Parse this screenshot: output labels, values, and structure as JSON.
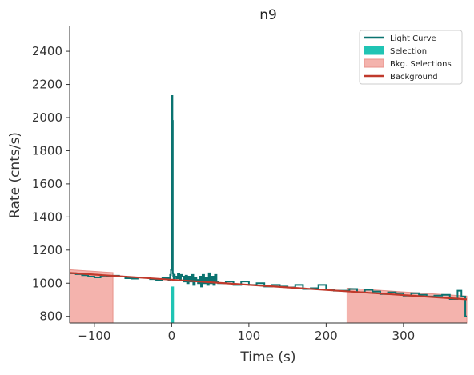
{
  "chart_data": {
    "type": "line",
    "title": "n9",
    "xlabel": "Time (s)",
    "ylabel": "Rate (cnts/s)",
    "xlim": [
      -132,
      382
    ],
    "ylim": [
      760,
      2550
    ],
    "x_ticks": [
      -100,
      0,
      100,
      200,
      300
    ],
    "x_tick_labels": [
      "−100",
      "0",
      "100",
      "200",
      "300"
    ],
    "y_ticks": [
      800,
      1000,
      1200,
      1400,
      1600,
      1800,
      2000,
      2200,
      2400
    ],
    "y_tick_labels": [
      "800",
      "1000",
      "1200",
      "1400",
      "1600",
      "1800",
      "2000",
      "2200",
      "2400"
    ],
    "grid": false,
    "legend_position": "top-right",
    "colors": {
      "light_curve": "#0a7370",
      "selection": "#20c4b4",
      "bkg_selection": "#f4b3ad",
      "bkg_selection_edge": "#e8928a",
      "background": "#c0392b"
    },
    "legend": [
      {
        "label": "Light Curve",
        "kind": "line",
        "color_key": "light_curve"
      },
      {
        "label": "Selection",
        "kind": "patch",
        "color_key": "selection"
      },
      {
        "label": "Bkg. Selections",
        "kind": "patch",
        "color_key": "bkg_selection"
      },
      {
        "label": "Background",
        "kind": "line",
        "color_key": "background"
      }
    ],
    "series": [
      {
        "name": "Light Curve",
        "kind": "step",
        "x": [
          -132,
          -124,
          -116,
          -108,
          -100,
          -92,
          -84,
          -76,
          -68,
          -60,
          -52,
          -44,
          -36,
          -28,
          -20,
          -12,
          -4,
          -2,
          -1,
          0,
          0.5,
          1,
          1.5,
          2,
          2.5,
          3,
          4,
          6,
          8,
          10,
          12,
          14,
          16,
          18,
          20,
          22,
          24,
          26,
          28,
          30,
          32,
          34,
          36,
          38,
          40,
          42,
          44,
          46,
          48,
          50,
          52,
          54,
          56,
          58,
          60,
          70,
          80,
          90,
          100,
          110,
          120,
          130,
          140,
          150,
          160,
          170,
          180,
          190,
          200,
          210,
          220,
          230,
          240,
          250,
          260,
          270,
          280,
          290,
          300,
          310,
          320,
          330,
          340,
          350,
          360,
          370,
          375,
          380
        ],
        "y": [
          1060,
          1055,
          1048,
          1040,
          1035,
          1045,
          1040,
          1045,
          1040,
          1030,
          1028,
          1035,
          1035,
          1025,
          1020,
          1030,
          1020,
          1050,
          1080,
          1200,
          2130,
          1980,
          1060,
          1040,
          1030,
          1050,
          1040,
          1030,
          1055,
          1020,
          1050,
          1040,
          1010,
          1045,
          1000,
          1040,
          1010,
          1050,
          990,
          1030,
          1020,
          1000,
          1040,
          980,
          1050,
          1000,
          1030,
          990,
          1060,
          1000,
          1040,
          990,
          1050,
          1010,
          1000,
          1010,
          990,
          1010,
          990,
          1000,
          980,
          990,
          980,
          975,
          990,
          965,
          970,
          990,
          960,
          955,
          955,
          965,
          945,
          960,
          950,
          935,
          945,
          940,
          925,
          940,
          930,
          920,
          925,
          930,
          905,
          955,
          920,
          800
        ]
      },
      {
        "name": "Background",
        "kind": "line",
        "x": [
          -132,
          382
        ],
        "y": [
          1062,
          903
        ]
      }
    ],
    "selection": {
      "x": [
        -1,
        3
      ],
      "y": [
        760,
        980
      ]
    },
    "bkg_selections": [
      {
        "x": [
          -132,
          -76
        ]
      },
      {
        "x": [
          227,
          382
        ]
      }
    ]
  }
}
